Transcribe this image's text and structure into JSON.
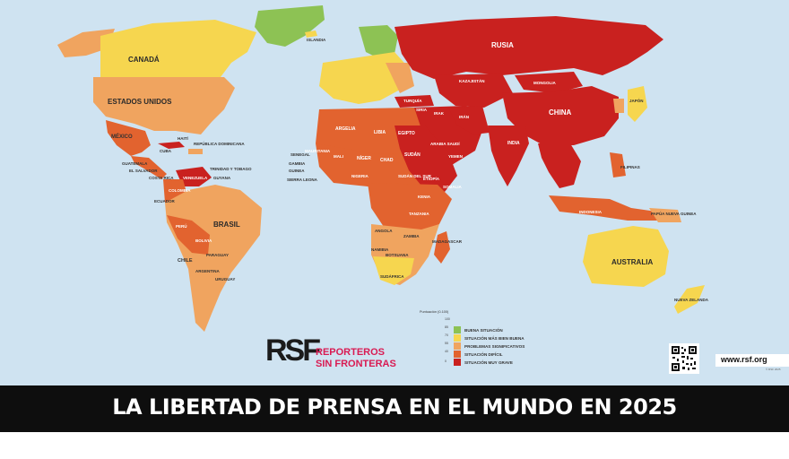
{
  "title": "LA LIBERTAD DE PRENSA EN EL MUNDO EN 2025",
  "website": "www.rsf.org",
  "small_credit": "© RSF 2025",
  "logo": {
    "mark": "RSF",
    "name_line1": "REPORTEROS",
    "name_line2": "SIN FRONTERAS"
  },
  "legend": {
    "score_label": "Puntuación (0-100)",
    "ticks": [
      "100",
      "85",
      "70",
      "55",
      "40",
      "0"
    ],
    "items": [
      {
        "label": "BUENA SITUACIÓN",
        "color": "#8dc254"
      },
      {
        "label": "SITUACIÓN MÁS BIEN BUENA",
        "color": "#f6d64f"
      },
      {
        "label": "PROBLEMAS SIGNIFICATIVOS",
        "color": "#f0a45f"
      },
      {
        "label": "SITUACIÓN DIFÍCIL",
        "color": "#e2632f"
      },
      {
        "label": "SITUACIÓN MUY GRAVE",
        "color": "#c9211f"
      }
    ]
  },
  "colors": {
    "ocean": "#cfe3f1",
    "good": "#8dc254",
    "satisfactory": "#f6d64f",
    "problematic": "#f0a45f",
    "difficult": "#e2632f",
    "very_serious": "#c9211f",
    "banner": "#0e0e0e"
  },
  "countries_large": {
    "canada": "CANADÁ",
    "usa": "ESTADOS UNIDOS",
    "mexico": "MÉXICO",
    "brazil": "BRASIL",
    "russia": "RUSIA",
    "china": "CHINA",
    "australia": "AUSTRALIA",
    "india": "INDIA",
    "mongolia": "MONGOLIA",
    "kazakhstan": "KAZAJISTÁN",
    "algeria": "ARGELIA",
    "libya": "LIBIA",
    "egypt": "EGIPTO",
    "niger": "NÍGER",
    "chad": "CHAD",
    "sudan": "SUDÁN",
    "mali": "MALI",
    "mauritania": "MAURITANIA",
    "nigeria": "NIGERIA",
    "ethiopia": "ETIOPÍA",
    "south_sudan": "SUDÁN DEL SUR",
    "kenya": "KENIA",
    "tanzania": "TANZANIA",
    "angola": "ANGOLA",
    "zambia": "ZAMBIA",
    "namibia": "NAMIBIA",
    "botswana": "BOTSUANA",
    "south_africa": "SUDÁFRICA",
    "madagascar": "MADAGASCAR",
    "venezuela": "VENEZUELA",
    "colombia": "COLOMBIA",
    "peru": "PERÚ",
    "bolivia": "BOLIVIA",
    "chile": "CHILE",
    "argentina": "ARGENTINA",
    "paraguay": "PARAGUAY",
    "uruguay": "URUGUAY",
    "ecuador": "ECUADOR",
    "indonesia": "INDONESIA",
    "philippines": "FILIPINAS",
    "new_zealand": "NUEVA ZELANDA",
    "png": "PAPÚA NUEVA GUINEA",
    "saudi": "ARABIA SAUDÍ",
    "iran": "IRÁN",
    "turkey": "TURQUÍA",
    "japan": "JAPÓN",
    "greenland_area": "ISLANDIA",
    "cuba": "CUBA",
    "guatemala": "GUATEMALA",
    "el_salvador": "EL SALVADOR",
    "costa_rica": "COSTA RICA",
    "haiti": "HAITÍ",
    "dominican": "REPÚBLICA DOMINICANA",
    "trinidad": "TRINIDAD Y TOBAGO",
    "guyana": "GUYANA",
    "senegal": "SENEGAL",
    "gambia": "GAMBIA",
    "guinea": "GUINEA",
    "sierra_leone": "SIERRA LEONA",
    "somalia": "SOMALIA",
    "yemen": "YEMEN",
    "iraq": "IRAK",
    "syria": "SIRIA"
  }
}
